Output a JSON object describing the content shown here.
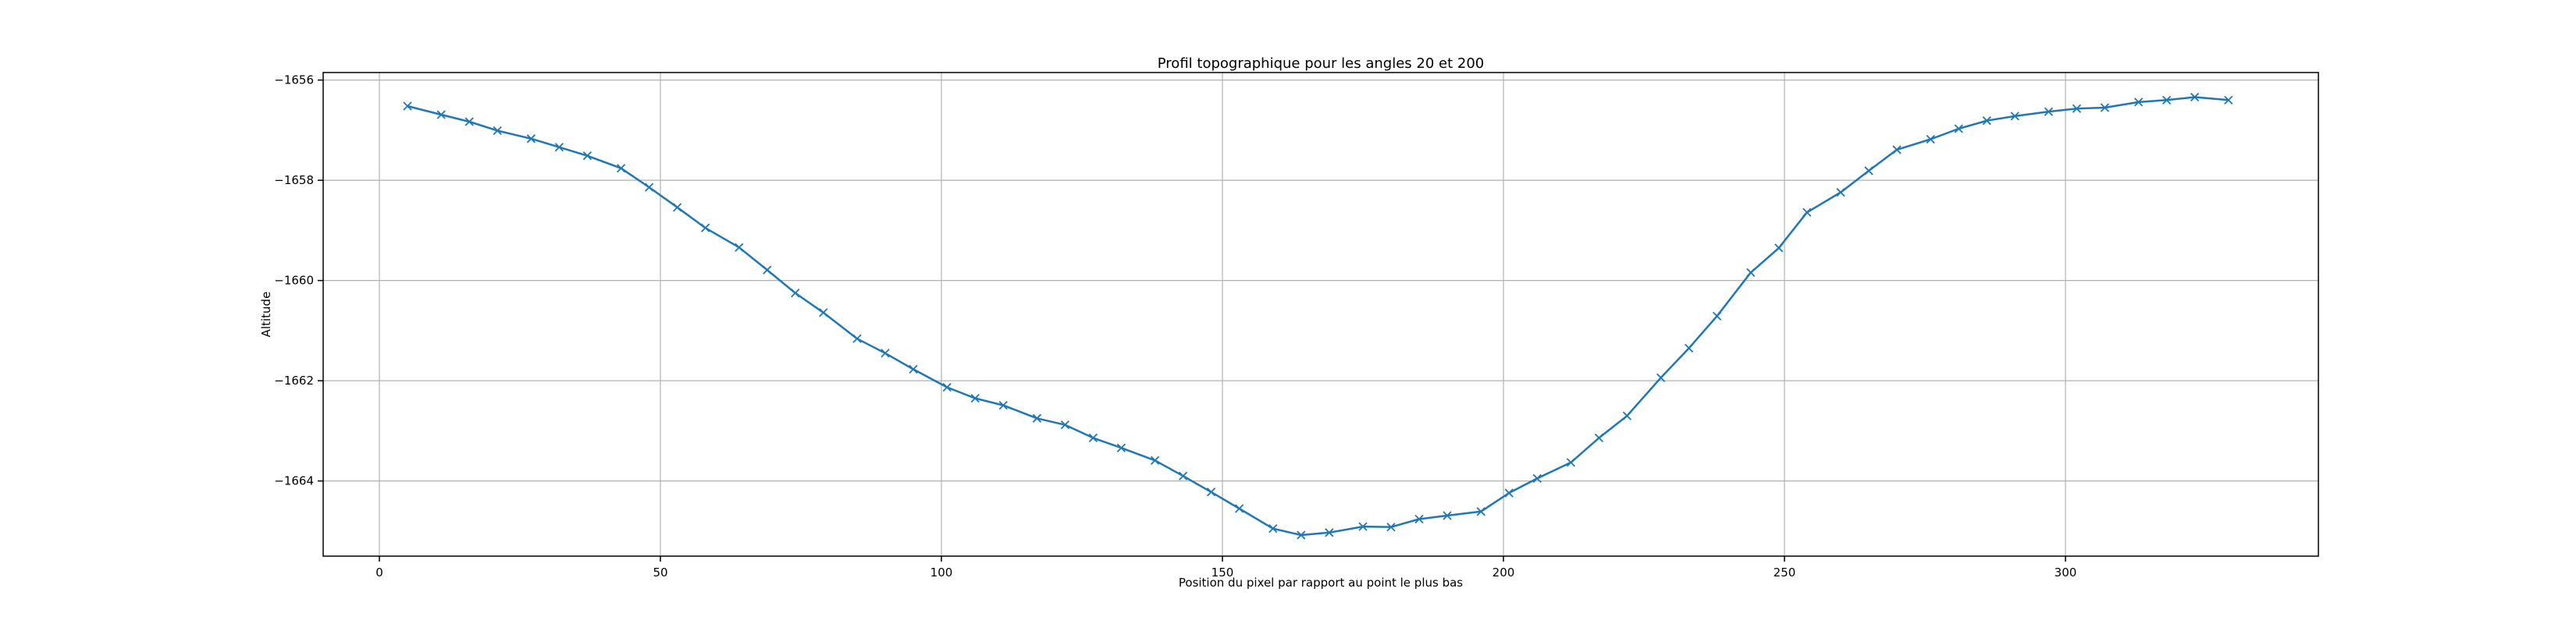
{
  "chart_data": {
    "type": "line",
    "title": "Profil topographique pour les angles 20 et 200",
    "xlabel": "Position du pixel par rapport au point le plus bas",
    "ylabel": "Altitude",
    "xlim": [
      -10,
      345
    ],
    "ylim": [
      -1665.5,
      -1655.85
    ],
    "x_ticks": [
      0,
      50,
      100,
      150,
      200,
      250,
      300
    ],
    "x_tick_labels": [
      "0",
      "50",
      "100",
      "150",
      "200",
      "250",
      "300"
    ],
    "y_ticks": [
      -1656,
      -1658,
      -1660,
      -1662,
      -1664
    ],
    "y_tick_labels": [
      "−1656",
      "−1658",
      "−1660",
      "−1662",
      "−1664"
    ],
    "grid": true,
    "marker": "x",
    "color": "#1f77b4",
    "series": [
      {
        "x": [
          5,
          11,
          16,
          21,
          27,
          32,
          37,
          43,
          48,
          53,
          58,
          64,
          69,
          74,
          79,
          85,
          90,
          95,
          101,
          106,
          111,
          117,
          122,
          127,
          132,
          138,
          143,
          148,
          153,
          159,
          164,
          169,
          175,
          180,
          185,
          190,
          196,
          201,
          206,
          212,
          217,
          222,
          228,
          233,
          238,
          244,
          249,
          254,
          260,
          265,
          270,
          276,
          281,
          286,
          291,
          297,
          302,
          307,
          313,
          318,
          323,
          329
        ],
        "y": [
          -1656.52,
          -1656.69,
          -1656.83,
          -1657.01,
          -1657.17,
          -1657.34,
          -1657.51,
          -1657.76,
          -1658.14,
          -1658.54,
          -1658.95,
          -1659.34,
          -1659.79,
          -1660.25,
          -1660.64,
          -1661.16,
          -1661.45,
          -1661.77,
          -1662.13,
          -1662.35,
          -1662.49,
          -1662.75,
          -1662.88,
          -1663.14,
          -1663.34,
          -1663.59,
          -1663.9,
          -1664.22,
          -1664.55,
          -1664.95,
          -1665.08,
          -1665.03,
          -1664.91,
          -1664.92,
          -1664.76,
          -1664.69,
          -1664.61,
          -1664.24,
          -1663.95,
          -1663.63,
          -1663.14,
          -1662.7,
          -1661.94,
          -1661.35,
          -1660.71,
          -1659.84,
          -1659.35,
          -1658.64,
          -1658.24,
          -1657.81,
          -1657.39,
          -1657.18,
          -1656.97,
          -1656.81,
          -1656.72,
          -1656.63,
          -1656.57,
          -1656.55,
          -1656.44,
          -1656.4,
          -1656.34,
          -1656.4
        ]
      }
    ]
  }
}
